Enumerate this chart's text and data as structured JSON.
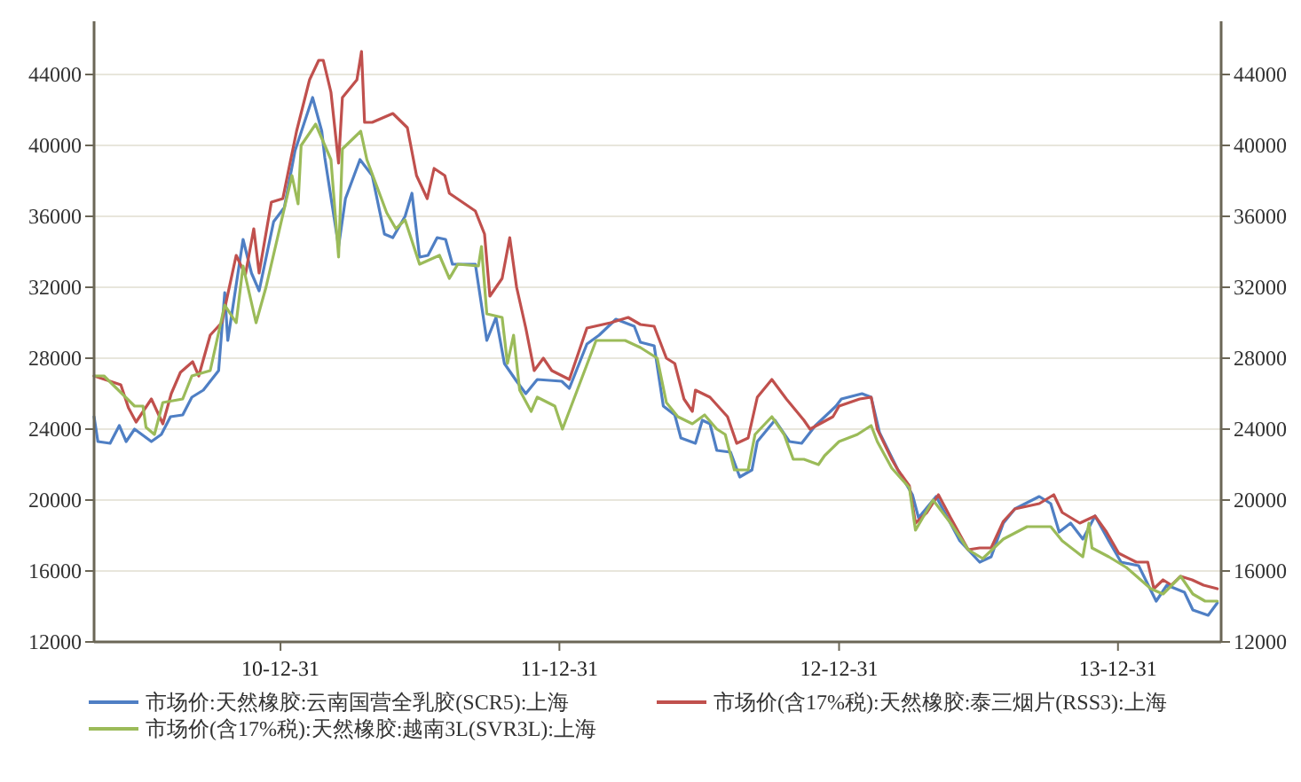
{
  "chart_data": {
    "type": "line",
    "xlim": [
      "2010-05-01",
      "2014-05-15"
    ],
    "xticks": [
      {
        "value": "2010-12-31",
        "label": "10-12-31"
      },
      {
        "value": "2011-12-31",
        "label": "11-12-31"
      },
      {
        "value": "2012-12-31",
        "label": "12-12-31"
      },
      {
        "value": "2013-12-31",
        "label": "13-12-31"
      }
    ],
    "ylim": [
      12000,
      47000
    ],
    "yticks": [
      12000,
      16000,
      20000,
      24000,
      28000,
      32000,
      36000,
      40000,
      44000
    ],
    "y2lim": [
      12000,
      47000
    ],
    "y2ticks": [
      12000,
      16000,
      20000,
      24000,
      28000,
      32000,
      36000,
      40000,
      44000
    ],
    "grid": "y",
    "legend": "bottom",
    "series": [
      {
        "name": "市场价:天然橡胶:云南国营全乳胶(SCR5):上海",
        "color": "#4f7fc4",
        "x": [
          "2010-05-01",
          "2010-05-06",
          "2010-05-22",
          "2010-06-03",
          "2010-06-12",
          "2010-06-23",
          "2010-07-15",
          "2010-07-28",
          "2010-08-09",
          "2010-08-25",
          "2010-09-06",
          "2010-09-21",
          "2010-10-11",
          "2010-10-19",
          "2010-10-23",
          "2010-11-12",
          "2010-11-23",
          "2010-12-03",
          "2010-12-22",
          "2011-01-05",
          "2011-01-19",
          "2011-02-11",
          "2011-02-23",
          "2011-02-27",
          "2011-03-17",
          "2011-03-26",
          "2011-04-14",
          "2011-04-30",
          "2011-05-16",
          "2011-05-27",
          "2011-06-12",
          "2011-06-21",
          "2011-07-01",
          "2011-07-12",
          "2011-07-24",
          "2011-08-04",
          "2011-08-13",
          "2011-09-12",
          "2011-09-27",
          "2011-10-09",
          "2011-10-20",
          "2011-11-05",
          "2011-11-17",
          "2011-12-02",
          "2012-01-03",
          "2012-01-13",
          "2012-02-05",
          "2012-02-21",
          "2012-03-14",
          "2012-04-07",
          "2012-04-15",
          "2012-05-03",
          "2012-05-15",
          "2012-05-30",
          "2012-06-07",
          "2012-06-26",
          "2012-07-05",
          "2012-07-15",
          "2012-07-24",
          "2012-08-11",
          "2012-08-23",
          "2012-09-08",
          "2012-09-15",
          "2012-10-08",
          "2012-10-27",
          "2012-11-12",
          "2012-11-30",
          "2012-12-27",
          "2013-01-03",
          "2013-01-30",
          "2013-02-11",
          "2013-02-22",
          "2013-03-18",
          "2013-04-06",
          "2013-04-14",
          "2013-05-07",
          "2013-05-22",
          "2013-06-07",
          "2013-07-03",
          "2013-07-18",
          "2013-08-03",
          "2013-08-18",
          "2013-09-19",
          "2013-10-04",
          "2013-10-15",
          "2013-10-30",
          "2013-11-15",
          "2013-12-01",
          "2013-12-19",
          "2014-01-04",
          "2014-01-27",
          "2014-02-19",
          "2014-03-05",
          "2014-03-28",
          "2014-04-08",
          "2014-04-28",
          "2014-05-10"
        ],
        "values": [
          24700,
          23300,
          23200,
          24200,
          23300,
          24000,
          23300,
          23700,
          24700,
          24800,
          25800,
          26200,
          27300,
          31700,
          29000,
          34700,
          32800,
          31800,
          35700,
          36500,
          39700,
          42700,
          40800,
          39300,
          34300,
          37000,
          39200,
          38300,
          35000,
          34800,
          36000,
          37300,
          33700,
          33800,
          34800,
          34700,
          33300,
          33300,
          29000,
          30300,
          27700,
          26700,
          26000,
          26800,
          26700,
          26300,
          28800,
          29300,
          30200,
          29800,
          28900,
          28700,
          25300,
          24800,
          23500,
          23200,
          24500,
          24300,
          22800,
          22700,
          21300,
          21700,
          23300,
          24500,
          23300,
          23200,
          24200,
          25300,
          25700,
          26000,
          25800,
          23800,
          21700,
          20300,
          19000,
          20200,
          19000,
          17700,
          16500,
          16800,
          18700,
          19500,
          20200,
          19800,
          18200,
          18700,
          17800,
          19100,
          17700,
          16500,
          16300,
          14300,
          15200,
          14800,
          13800,
          13500,
          14200
        ]
      },
      {
        "name": "市场价(含17%税):天然橡胶:泰三烟片(RSS3):上海",
        "color": "#c0504d",
        "x": [
          "2010-05-01",
          "2010-06-05",
          "2010-06-15",
          "2010-06-25",
          "2010-07-15",
          "2010-07-30",
          "2010-08-10",
          "2010-08-22",
          "2010-09-07",
          "2010-09-15",
          "2010-09-30",
          "2010-10-15",
          "2010-11-03",
          "2010-11-15",
          "2010-11-26",
          "2010-12-03",
          "2010-12-19",
          "2011-01-03",
          "2011-01-11",
          "2011-01-21",
          "2011-02-07",
          "2011-02-19",
          "2011-02-25",
          "2011-03-07",
          "2011-03-17",
          "2011-03-22",
          "2011-04-10",
          "2011-04-16",
          "2011-04-20",
          "2011-04-30",
          "2011-05-27",
          "2011-06-15",
          "2011-06-27",
          "2011-07-11",
          "2011-07-20",
          "2011-08-03",
          "2011-08-09",
          "2011-09-12",
          "2011-09-24",
          "2011-10-01",
          "2011-10-17",
          "2011-10-27",
          "2011-11-05",
          "2011-11-17",
          "2011-11-28",
          "2011-12-10",
          "2011-12-21",
          "2012-01-13",
          "2012-02-05",
          "2012-03-07",
          "2012-03-30",
          "2012-04-15",
          "2012-05-03",
          "2012-05-19",
          "2012-05-30",
          "2012-06-11",
          "2012-06-22",
          "2012-06-26",
          "2012-07-15",
          "2012-08-07",
          "2012-08-19",
          "2012-09-03",
          "2012-09-15",
          "2012-10-04",
          "2012-10-23",
          "2012-11-15",
          "2012-11-23",
          "2012-12-23",
          "2012-12-31",
          "2013-01-27",
          "2013-02-11",
          "2013-02-19",
          "2013-03-10",
          "2013-03-18",
          "2013-04-02",
          "2013-04-10",
          "2013-04-25",
          "2013-05-10",
          "2013-05-26",
          "2013-06-18",
          "2013-07-03",
          "2013-07-18",
          "2013-08-03",
          "2013-08-18",
          "2013-09-19",
          "2013-10-08",
          "2013-10-19",
          "2013-11-11",
          "2013-12-01",
          "2013-12-16",
          "2014-01-01",
          "2014-01-24",
          "2014-02-08",
          "2014-02-16",
          "2014-02-28",
          "2014-03-11",
          "2014-03-23",
          "2014-04-07",
          "2014-04-22",
          "2014-05-10"
        ],
        "values": [
          27000,
          26500,
          25200,
          24400,
          25700,
          24300,
          26000,
          27200,
          27800,
          27000,
          29300,
          30000,
          33800,
          32700,
          35300,
          32800,
          36800,
          37000,
          38700,
          40800,
          43700,
          44800,
          44800,
          43000,
          39000,
          42700,
          43700,
          45300,
          41300,
          41300,
          41800,
          41000,
          38300,
          37000,
          38700,
          38300,
          37300,
          36300,
          35000,
          31500,
          32500,
          34800,
          32000,
          29700,
          27300,
          28000,
          27300,
          26800,
          29700,
          30000,
          30300,
          29900,
          29800,
          28000,
          27700,
          25700,
          25000,
          26200,
          25800,
          24700,
          23200,
          23500,
          25800,
          26800,
          25700,
          24500,
          24000,
          24700,
          25300,
          25700,
          25800,
          24000,
          22300,
          21700,
          20800,
          18700,
          19300,
          20300,
          19000,
          17200,
          17300,
          17300,
          18800,
          19500,
          19800,
          20300,
          19300,
          18700,
          19100,
          18200,
          17000,
          16500,
          16500,
          15000,
          15500,
          15200,
          15700,
          15500,
          15200,
          15000
        ]
      },
      {
        "name": "市场价(含17%税):天然橡胶:越南3L(SVR3L):上海",
        "color": "#9bbb59",
        "x": [
          "2010-05-01",
          "2010-05-14",
          "2010-06-23",
          "2010-07-04",
          "2010-07-08",
          "2010-07-19",
          "2010-07-30",
          "2010-08-25",
          "2010-09-06",
          "2010-09-30",
          "2010-10-19",
          "2010-11-03",
          "2010-11-12",
          "2010-11-29",
          "2010-12-12",
          "2011-01-08",
          "2011-01-15",
          "2011-01-23",
          "2011-01-27",
          "2011-02-15",
          "2011-03-07",
          "2011-03-17",
          "2011-03-22",
          "2011-04-15",
          "2011-04-23",
          "2011-05-19",
          "2011-05-31",
          "2011-06-12",
          "2011-07-01",
          "2011-07-27",
          "2011-08-09",
          "2011-08-20",
          "2011-09-16",
          "2011-09-20",
          "2011-09-27",
          "2011-10-17",
          "2011-10-24",
          "2011-11-01",
          "2011-11-09",
          "2011-11-24",
          "2011-12-02",
          "2011-12-25",
          "2012-01-04",
          "2012-02-17",
          "2012-03-26",
          "2012-04-15",
          "2012-05-07",
          "2012-05-19",
          "2012-06-03",
          "2012-06-22",
          "2012-07-08",
          "2012-07-24",
          "2012-08-04",
          "2012-08-16",
          "2012-09-03",
          "2012-09-12",
          "2012-10-04",
          "2012-10-20",
          "2012-11-01",
          "2012-11-15",
          "2012-12-04",
          "2012-12-12",
          "2012-12-31",
          "2013-01-24",
          "2013-02-11",
          "2013-02-19",
          "2013-03-10",
          "2013-04-02",
          "2013-04-10",
          "2013-05-03",
          "2013-05-26",
          "2013-06-18",
          "2013-07-07",
          "2013-08-03",
          "2013-09-03",
          "2013-10-04",
          "2013-10-19",
          "2013-11-15",
          "2013-11-23",
          "2013-11-27",
          "2013-12-19",
          "2014-01-11",
          "2014-02-12",
          "2014-02-28",
          "2014-03-23",
          "2014-04-08",
          "2014-04-24",
          "2014-05-10"
        ],
        "values": [
          27000,
          27000,
          25300,
          25300,
          24100,
          23700,
          25500,
          25700,
          27000,
          27300,
          31000,
          30000,
          33200,
          30000,
          32000,
          37000,
          38300,
          36700,
          40000,
          41200,
          39200,
          33700,
          39800,
          40800,
          39200,
          36200,
          35300,
          35800,
          33300,
          33800,
          32500,
          33300,
          33200,
          34300,
          30500,
          30300,
          27700,
          29300,
          26200,
          25000,
          25800,
          25300,
          24000,
          29000,
          29000,
          28600,
          28000,
          25500,
          24700,
          24300,
          24800,
          24000,
          23700,
          21700,
          21700,
          23700,
          24700,
          23700,
          22300,
          22300,
          22000,
          22500,
          23300,
          23700,
          24200,
          23300,
          21800,
          20700,
          18300,
          20000,
          18700,
          17200,
          16700,
          17800,
          18500,
          18500,
          17700,
          16800,
          18700,
          17300,
          16800,
          16200,
          15000,
          14700,
          15700,
          14700,
          14300,
          14300
        ]
      }
    ]
  }
}
